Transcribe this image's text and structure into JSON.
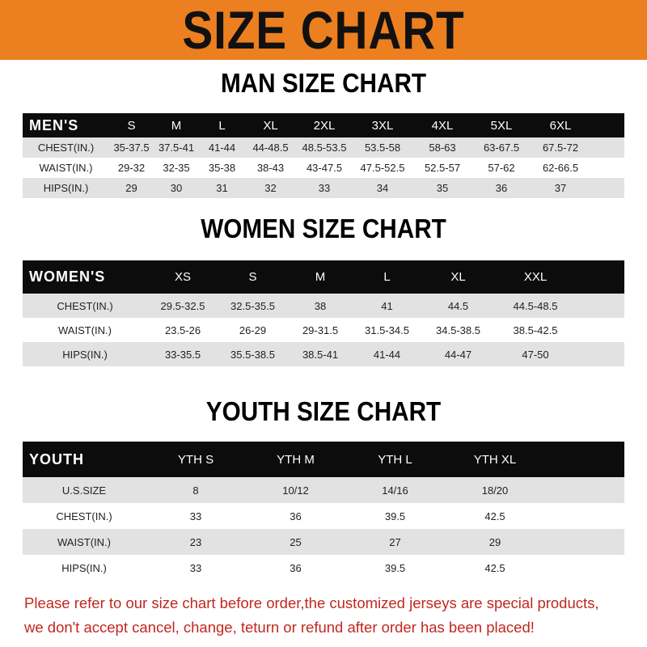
{
  "banner_title": "SIZE CHART",
  "colors": {
    "banner": "#ec7f1f",
    "header_row": "#0c0c0c",
    "stripe": "#e2e2e2",
    "footer_text": "#c0281e"
  },
  "men": {
    "title": "MAN SIZE CHART",
    "header": [
      "MEN'S",
      "S",
      "M",
      "L",
      "XL",
      "2XL",
      "3XL",
      "4XL",
      "5XL",
      "6XL"
    ],
    "rows": [
      [
        "CHEST(IN.)",
        "35-37.5",
        "37.5-41",
        "41-44",
        "44-48.5",
        "48.5-53.5",
        "53.5-58",
        "58-63",
        "63-67.5",
        "67.5-72"
      ],
      [
        "WAIST(IN.)",
        "29-32",
        "32-35",
        "35-38",
        "38-43",
        "43-47.5",
        "47.5-52.5",
        "52.5-57",
        "57-62",
        "62-66.5"
      ],
      [
        "HIPS(IN.)",
        "29",
        "30",
        "31",
        "32",
        "33",
        "34",
        "35",
        "36",
        "37"
      ]
    ]
  },
  "women": {
    "title": "WOMEN SIZE CHART",
    "header": [
      "WOMEN'S",
      "XS",
      "S",
      "M",
      "L",
      "XL",
      "XXL"
    ],
    "rows": [
      [
        "CHEST(IN.)",
        "29.5-32.5",
        "32.5-35.5",
        "38",
        "41",
        "44.5",
        "44.5-48.5"
      ],
      [
        "WAIST(IN.)",
        "23.5-26",
        "26-29",
        "29-31.5",
        "31.5-34.5",
        "34.5-38.5",
        "38.5-42.5"
      ],
      [
        "HIPS(IN.)",
        "33-35.5",
        "35.5-38.5",
        "38.5-41",
        "41-44",
        "44-47",
        "47-50"
      ]
    ]
  },
  "youth": {
    "title": "YOUTH SIZE CHART",
    "header": [
      "YOUTH",
      "YTH S",
      "YTH M",
      "YTH L",
      "YTH XL"
    ],
    "rows": [
      [
        "U.S.SIZE",
        "8",
        "10/12",
        "14/16",
        "18/20"
      ],
      [
        "CHEST(IN.)",
        "33",
        "36",
        "39.5",
        "42.5"
      ],
      [
        "WAIST(IN.)",
        "23",
        "25",
        "27",
        "29"
      ],
      [
        "HIPS(IN.)",
        "33",
        "36",
        "39.5",
        "42.5"
      ]
    ]
  },
  "footer": {
    "line1": "Please refer to our size chart before order,the customized jerseys are special products,",
    "line2": "we don't accept cancel, change, teturn or refund after order has been placed!"
  }
}
